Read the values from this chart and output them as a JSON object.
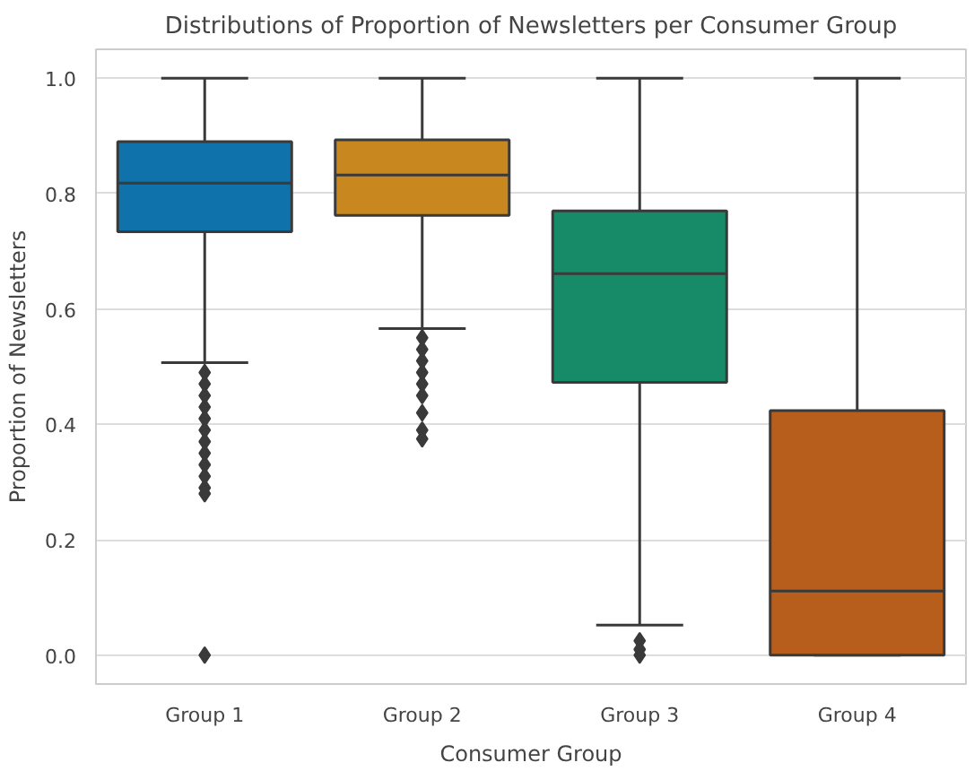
{
  "chart_data": {
    "type": "box",
    "title": "Distributions of Proportion of Newsletters per Consumer Group",
    "xlabel": "Consumer Group",
    "ylabel": "Proportion of Newsletters",
    "categories": [
      "Group 1",
      "Group 2",
      "Group 3",
      "Group 4"
    ],
    "colors": [
      "#0f72aa",
      "#c8881f",
      "#178a68",
      "#b85e1c"
    ],
    "boxes": [
      {
        "low": 0.507,
        "q1": 0.734,
        "median": 0.818,
        "q3": 0.89,
        "high": 1.0,
        "outliers": [
          0.49,
          0.47,
          0.45,
          0.43,
          0.41,
          0.39,
          0.37,
          0.35,
          0.33,
          0.31,
          0.29,
          0.28,
          0.0
        ]
      },
      {
        "low": 0.566,
        "q1": 0.762,
        "median": 0.832,
        "q3": 0.893,
        "high": 1.0,
        "outliers": [
          0.55,
          0.53,
          0.51,
          0.49,
          0.47,
          0.45,
          0.42,
          0.39,
          0.375
        ]
      },
      {
        "low": 0.052,
        "q1": 0.473,
        "median": 0.661,
        "q3": 0.77,
        "high": 1.0,
        "outliers": [
          0.025,
          0.01,
          0.0
        ]
      },
      {
        "low": 0.0,
        "q1": 0.0,
        "median": 0.111,
        "q3": 0.424,
        "high": 1.0
      }
    ],
    "ylim": [
      -0.05,
      1.05
    ],
    "yticks": [
      {
        "value": 0,
        "label": "0.0"
      },
      0.2,
      0.4,
      0.6,
      0.8,
      {
        "value": 1,
        "label": "1.0"
      }
    ],
    "grid": "y"
  }
}
